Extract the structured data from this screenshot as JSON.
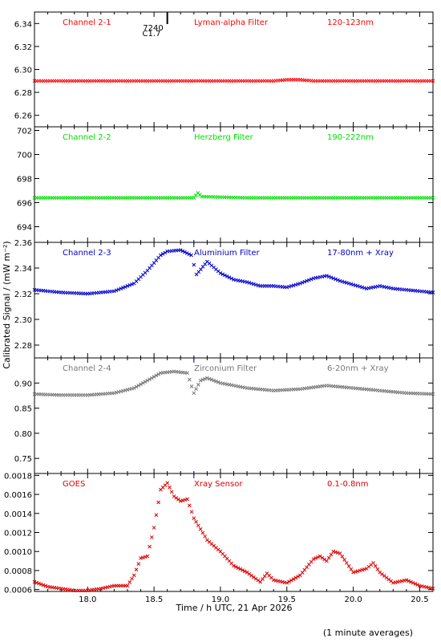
{
  "figure": {
    "ylabel": "Calibrated Signal / (mW m⁻²)",
    "xlabel": "Time / h UTC, 21 Apr 2026",
    "footnote": "(1 minute averages)",
    "marker_labels": [
      "7240",
      "C1.7"
    ],
    "marker_x": 18.6
  },
  "chart_data": [
    {
      "type": "scatter",
      "labels": [
        "Channel 2-1",
        "Lyman-alpha Filter",
        "120-123nm"
      ],
      "color": "#ff0000",
      "xlim": [
        17.6,
        20.6
      ],
      "ylim": [
        6.25,
        6.35
      ],
      "yticks": [
        6.26,
        6.28,
        6.3,
        6.32,
        6.34
      ],
      "ytick_labels": [
        "6.26",
        "6.28",
        "6.30",
        "6.32",
        "6.34"
      ],
      "x": [
        17.6,
        18.0,
        18.5,
        19.0,
        19.4,
        19.5,
        19.6,
        19.7,
        20.0,
        20.6
      ],
      "y": [
        6.29,
        6.29,
        6.29,
        6.29,
        6.29,
        6.291,
        6.291,
        6.29,
        6.29,
        6.29
      ]
    },
    {
      "type": "scatter",
      "labels": [
        "Channel 2-2",
        "Herzberg Filter",
        "190-222nm"
      ],
      "color": "#00e000",
      "xlim": [
        17.6,
        20.6
      ],
      "ylim": [
        692.7,
        702.3
      ],
      "yticks": [
        694,
        696,
        698,
        700,
        702
      ],
      "ytick_labels": [
        "694",
        "696",
        "698",
        "700",
        "702"
      ],
      "x": [
        17.6,
        18.0,
        18.5,
        18.8,
        18.83,
        18.86,
        19.2,
        20.0,
        20.6
      ],
      "y": [
        696.4,
        696.4,
        696.4,
        696.4,
        696.8,
        696.5,
        696.4,
        696.4,
        696.4
      ]
    },
    {
      "type": "scatter",
      "labels": [
        "Channel 2-3",
        "Aluminium Filter",
        "17-80nm + Xray"
      ],
      "color": "#0000cc",
      "xlim": [
        17.6,
        20.6
      ],
      "ylim": [
        2.27,
        2.36
      ],
      "yticks": [
        2.28,
        2.3,
        2.32,
        2.34,
        2.36
      ],
      "ytick_labels": [
        "2.28",
        "2.30",
        "2.32",
        "2.34",
        "2.36"
      ],
      "x": [
        17.6,
        17.8,
        18.0,
        18.2,
        18.35,
        18.45,
        18.55,
        18.6,
        18.7,
        18.78,
        18.82,
        18.9,
        19.0,
        19.1,
        19.2,
        19.3,
        19.4,
        19.5,
        19.6,
        19.7,
        19.8,
        19.9,
        20.0,
        20.1,
        20.2,
        20.3,
        20.4,
        20.5,
        20.6
      ],
      "y": [
        2.323,
        2.321,
        2.32,
        2.322,
        2.328,
        2.338,
        2.35,
        2.353,
        2.354,
        2.35,
        2.335,
        2.345,
        2.336,
        2.331,
        2.329,
        2.326,
        2.326,
        2.325,
        2.328,
        2.332,
        2.334,
        2.33,
        2.327,
        2.324,
        2.326,
        2.324,
        2.323,
        2.322,
        2.321
      ]
    },
    {
      "type": "scatter",
      "labels": [
        "Channel 2-4",
        "Zirconium Filter",
        "6-20nm + Xray"
      ],
      "color": "#777777",
      "xlim": [
        17.6,
        20.6
      ],
      "ylim": [
        0.72,
        0.95
      ],
      "yticks": [
        0.75,
        0.8,
        0.85,
        0.9
      ],
      "ytick_labels": [
        "0.75",
        "0.80",
        "0.85",
        "0.90"
      ],
      "x": [
        17.6,
        17.8,
        18.0,
        18.2,
        18.35,
        18.45,
        18.55,
        18.65,
        18.75,
        18.8,
        18.85,
        18.9,
        19.0,
        19.2,
        19.4,
        19.6,
        19.8,
        20.0,
        20.2,
        20.4,
        20.6
      ],
      "y": [
        0.878,
        0.876,
        0.876,
        0.88,
        0.89,
        0.905,
        0.92,
        0.923,
        0.92,
        0.88,
        0.905,
        0.91,
        0.9,
        0.89,
        0.885,
        0.888,
        0.895,
        0.89,
        0.885,
        0.88,
        0.878
      ]
    },
    {
      "type": "scatter",
      "labels": [
        "GOES",
        "Xray Sensor",
        "0.1-0.8nm"
      ],
      "color": "#dd0000",
      "xlim": [
        17.6,
        20.6
      ],
      "ylim": [
        0.00058,
        0.00182
      ],
      "yticks": [
        0.0006,
        0.0008,
        0.001,
        0.0012,
        0.0014,
        0.0016,
        0.0018
      ],
      "ytick_labels": [
        "0.0006",
        "0.0008",
        "0.0010",
        "0.0012",
        "0.0014",
        "0.0016",
        "0.0018"
      ],
      "x": [
        17.6,
        17.7,
        17.8,
        17.9,
        18.0,
        18.1,
        18.2,
        18.3,
        18.35,
        18.4,
        18.45,
        18.5,
        18.55,
        18.6,
        18.65,
        18.7,
        18.75,
        18.8,
        18.9,
        19.0,
        19.1,
        19.2,
        19.3,
        19.35,
        19.4,
        19.5,
        19.6,
        19.7,
        19.75,
        19.8,
        19.85,
        19.9,
        20.0,
        20.1,
        20.15,
        20.2,
        20.3,
        20.4,
        20.5,
        20.6
      ],
      "y": [
        0.00068,
        0.00063,
        0.00061,
        0.00059,
        0.00059,
        0.00061,
        0.00064,
        0.00064,
        0.00075,
        0.00093,
        0.00095,
        0.00125,
        0.00165,
        0.00172,
        0.00158,
        0.00153,
        0.00155,
        0.00135,
        0.00112,
        0.001,
        0.00085,
        0.00078,
        0.00068,
        0.00077,
        0.0007,
        0.00067,
        0.00075,
        0.00092,
        0.00095,
        0.0009,
        0.001,
        0.00098,
        0.00078,
        0.00082,
        0.00088,
        0.00078,
        0.00067,
        0.0007,
        0.00064,
        0.00061
      ]
    }
  ]
}
